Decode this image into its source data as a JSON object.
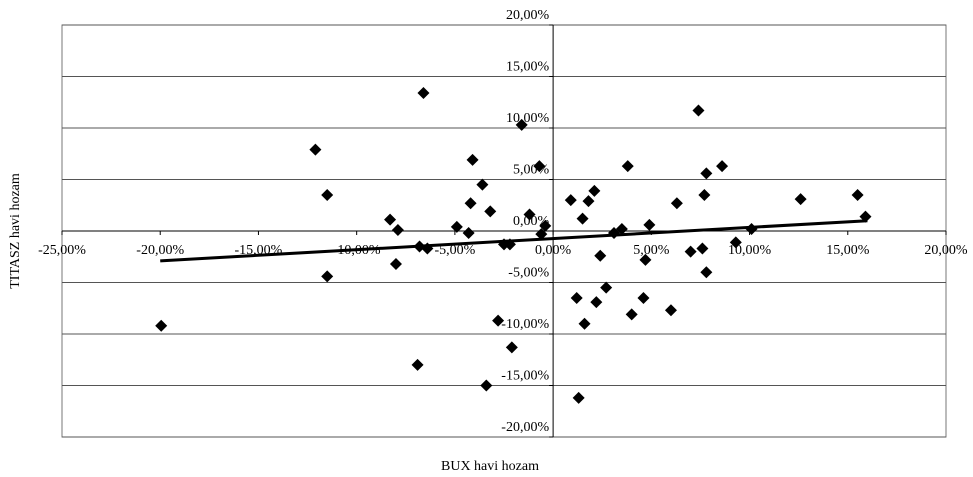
{
  "chart_data": {
    "type": "scatter",
    "x_label": "BUX havi hozam",
    "y_label": "TITASZ havi hozam",
    "color": "#000000",
    "grid": true,
    "xlim": [
      -25,
      20
    ],
    "ylim": [
      -20,
      20
    ],
    "xticks": [
      {
        "value": -25,
        "label": "-25,00%"
      },
      {
        "value": -20,
        "label": "-20,00%"
      },
      {
        "value": -15,
        "label": "-15,00%"
      },
      {
        "value": -10,
        "label": "-10,00%"
      },
      {
        "value": -5,
        "label": "-5,00%"
      },
      {
        "value": 0,
        "label": "0,00%"
      },
      {
        "value": 5,
        "label": "5,00%"
      },
      {
        "value": 10,
        "label": "10,00%"
      },
      {
        "value": 15,
        "label": "15,00%"
      },
      {
        "value": 20,
        "label": "20,00%"
      }
    ],
    "yticks": [
      {
        "value": -20,
        "label": "-20,00%"
      },
      {
        "value": -15,
        "label": "-15,00%"
      },
      {
        "value": -10,
        "label": "-10,00%"
      },
      {
        "value": -5,
        "label": "-5,00%"
      },
      {
        "value": 0,
        "label": "0,00%"
      },
      {
        "value": 5,
        "label": "5,00%"
      },
      {
        "value": 10,
        "label": "10,00%"
      },
      {
        "value": 15,
        "label": "15,00%"
      },
      {
        "value": 20,
        "label": "20,00%"
      }
    ],
    "x": [
      -19.95,
      -12.1,
      -11.5,
      -11.5,
      -8.3,
      -7.9,
      -8.0,
      -6.6,
      -6.8,
      -6.9,
      -6.4,
      -4.9,
      -4.3,
      -4.2,
      -4.1,
      -3.6,
      -3.2,
      -3.4,
      -2.8,
      -2.5,
      -2.2,
      -2.1,
      -1.6,
      -1.2,
      -0.7,
      -0.4,
      -0.6,
      0.9,
      1.2,
      1.3,
      1.5,
      1.6,
      1.8,
      2.1,
      2.2,
      2.4,
      2.7,
      3.1,
      3.5,
      3.8,
      4.0,
      4.6,
      4.7,
      4.9,
      6.0,
      6.3,
      7.0,
      7.4,
      7.6,
      7.7,
      7.8,
      7.8,
      8.6,
      9.3,
      10.1,
      12.6,
      15.5,
      15.9
    ],
    "values": [
      -9.2,
      7.9,
      3.5,
      -4.4,
      1.1,
      0.1,
      -3.2,
      13.4,
      -1.5,
      -13.0,
      -1.7,
      0.4,
      -0.2,
      2.7,
      6.9,
      4.5,
      1.9,
      -15.0,
      -8.7,
      -1.3,
      -1.3,
      -11.3,
      10.3,
      1.6,
      6.3,
      0.5,
      -0.3,
      3.0,
      -6.5,
      -16.2,
      1.2,
      -9.0,
      2.9,
      3.9,
      -6.9,
      -2.4,
      -5.5,
      -0.2,
      0.2,
      6.3,
      -8.1,
      -6.5,
      -2.8,
      0.6,
      -7.7,
      2.7,
      -2.0,
      11.7,
      -1.7,
      3.5,
      5.6,
      -4.0,
      6.3,
      -1.1,
      0.2,
      3.1,
      3.5,
      1.4
    ],
    "trendline": {
      "x": [
        -20,
        16
      ],
      "y": [
        -2.9,
        1.0
      ]
    }
  }
}
